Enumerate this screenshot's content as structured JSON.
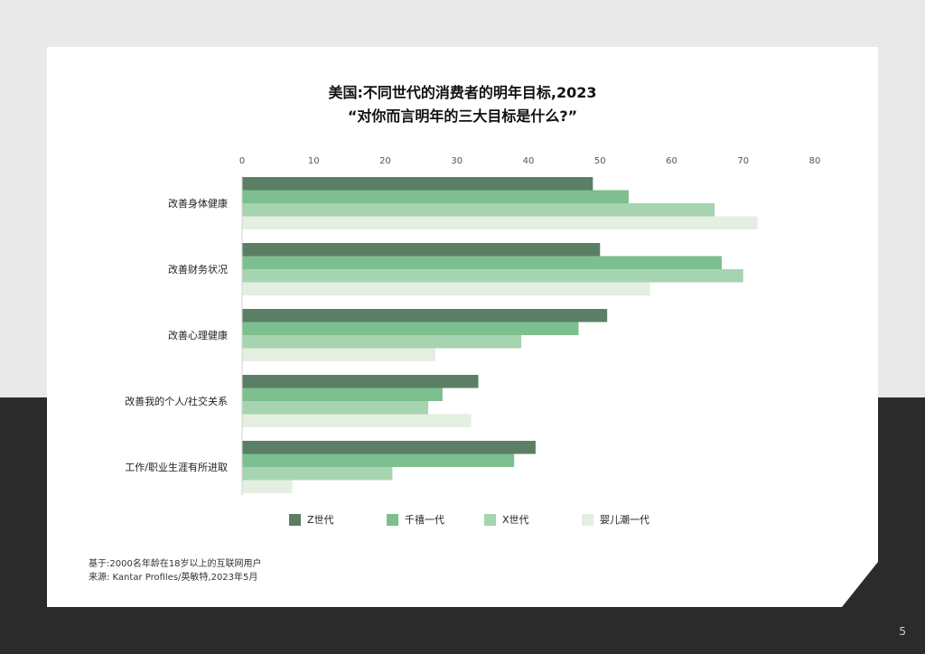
{
  "title_line1": "美国:不同世代的消费者的明年目标,2023",
  "title_line2": "“对你而言明年的三大目标是什么?”",
  "chart_data": {
    "type": "bar",
    "orientation": "horizontal",
    "categories": [
      "改善身体健康",
      "改善财务状况",
      "改善心理健康",
      "改善我的个人/社交关系",
      "工作/职业生涯有所进取"
    ],
    "series": [
      {
        "name": "Z世代",
        "color": "#5a7f65",
        "values": [
          49,
          50,
          51,
          33,
          41
        ]
      },
      {
        "name": "千禧一代",
        "color": "#7dbf8e",
        "values": [
          54,
          67,
          47,
          28,
          38
        ]
      },
      {
        "name": "X世代",
        "color": "#a6d4b0",
        "values": [
          66,
          70,
          39,
          26,
          21
        ]
      },
      {
        "name": "婴儿潮一代",
        "color": "#e4efe1",
        "values": [
          72,
          57,
          27,
          32,
          7
        ]
      }
    ],
    "xlim": [
      0,
      80
    ],
    "xticks": [
      "0",
      "10",
      "20",
      "30",
      "40",
      "50",
      "60",
      "70",
      "80"
    ],
    "grid": false,
    "legend_position": "bottom"
  },
  "notes": {
    "base": "基于:2000名年龄在18岁以上的互联网用户",
    "source": "来源: Kantar Profiles/英敏特,2023年5月"
  },
  "page_number": "5"
}
